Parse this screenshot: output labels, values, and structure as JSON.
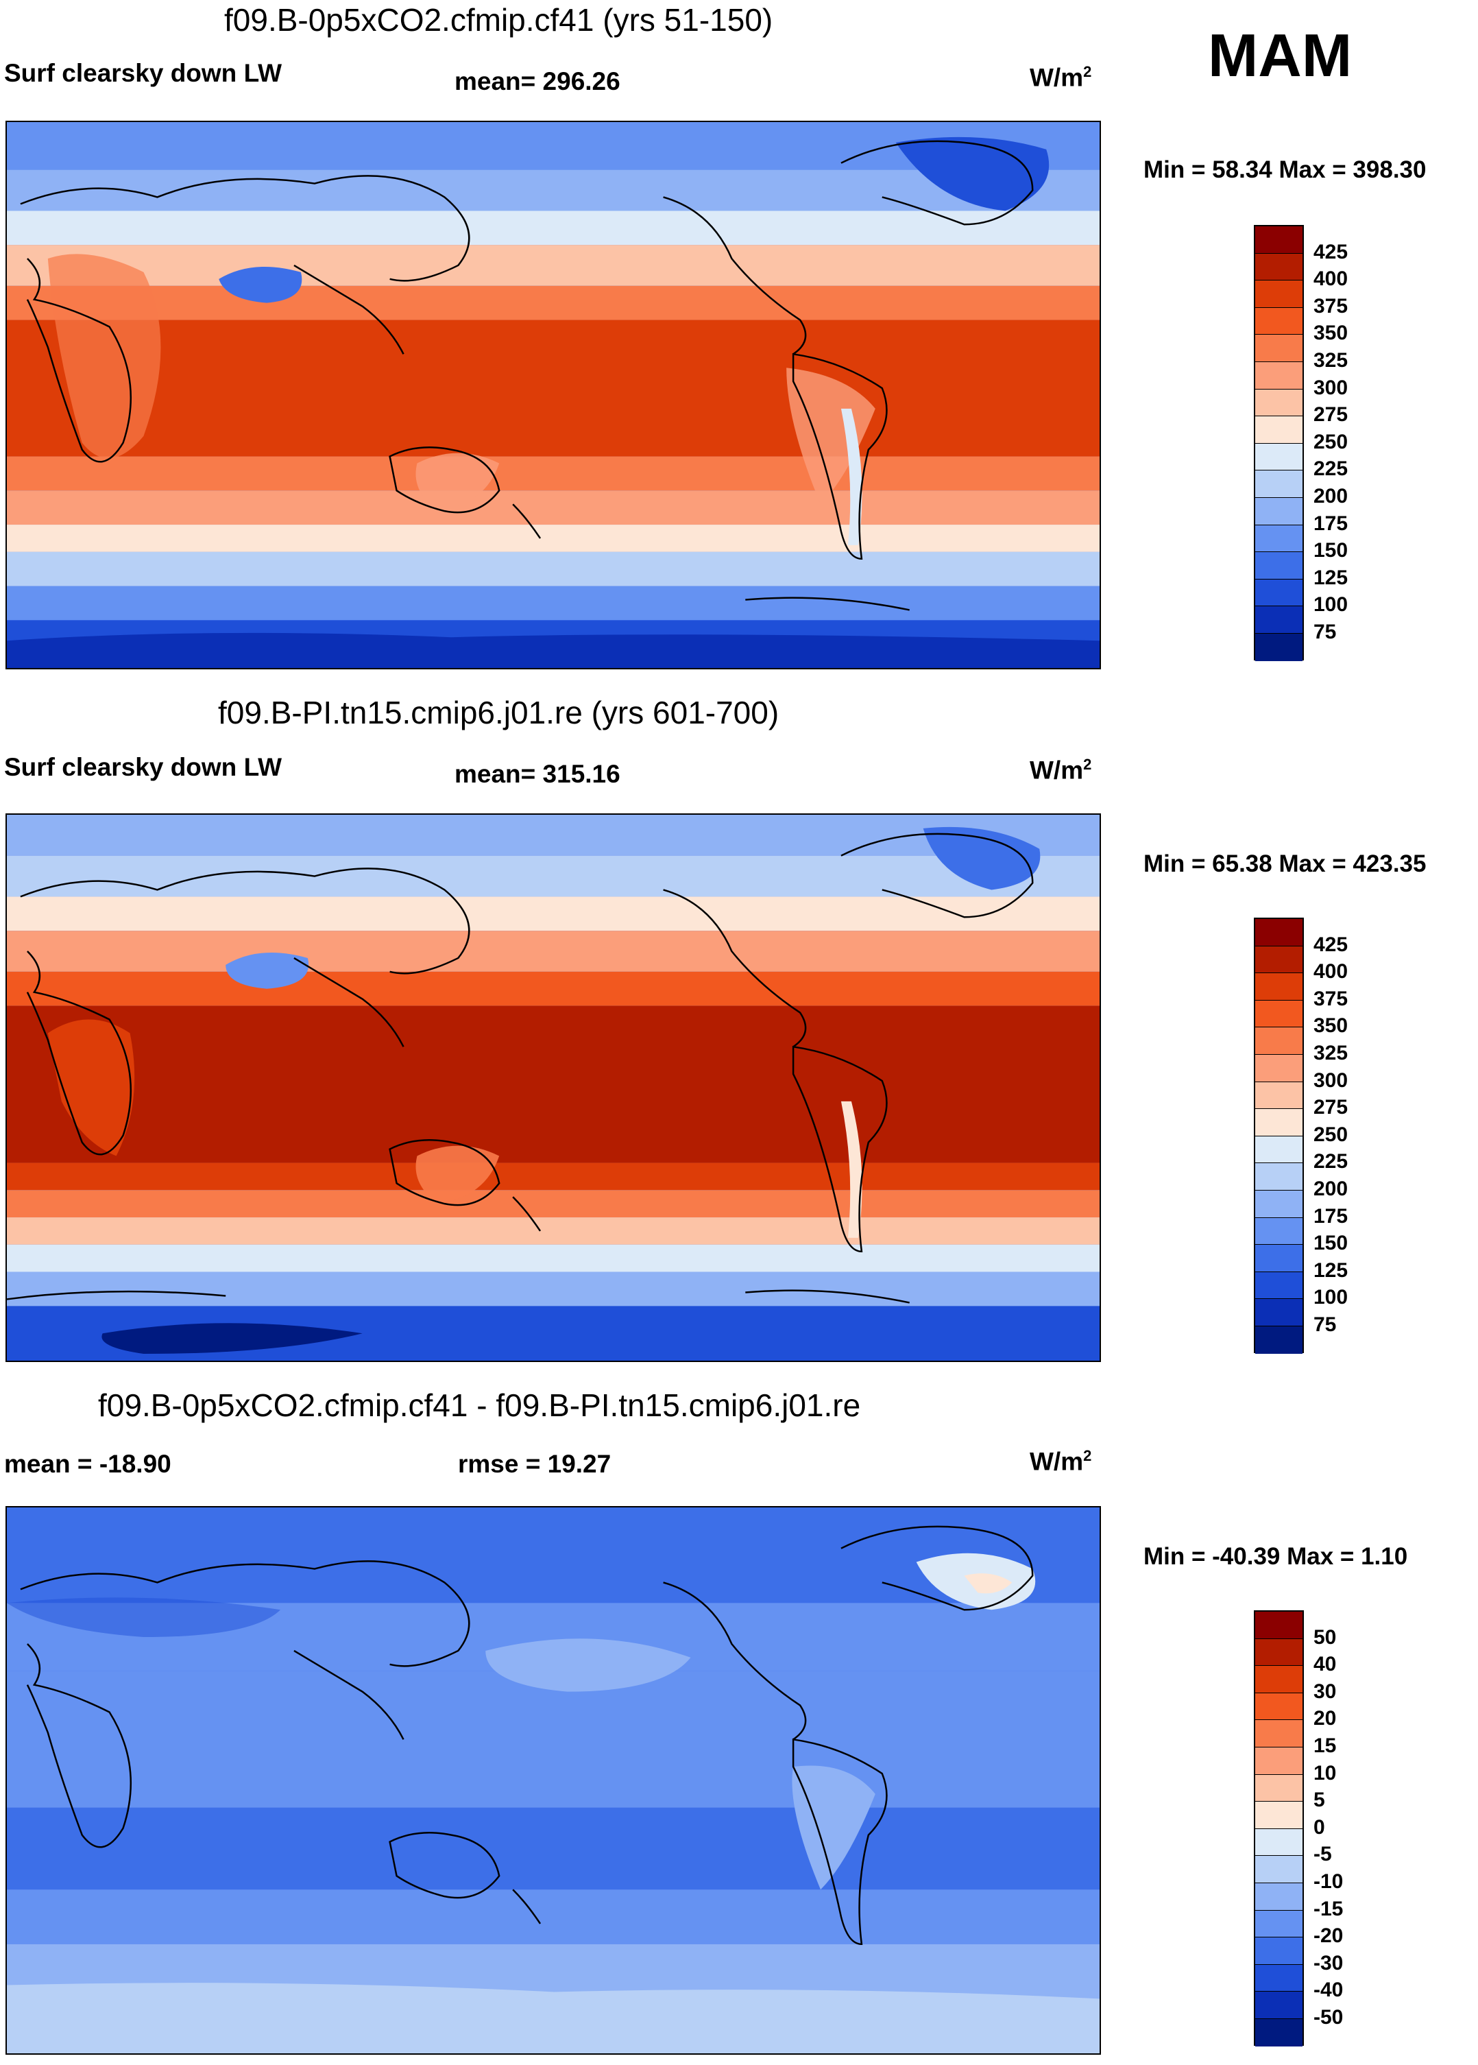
{
  "season": "MAM",
  "panels": [
    {
      "title": "f09.B-0p5xCO2.cfmip.cf41 (yrs 51-150)",
      "left_label": "Surf clearsky down LW",
      "center_label": "mean= 296.26",
      "units": "W/m",
      "units_sup": "2",
      "minmax": "Min =  58.34 Max = 398.30",
      "colorbar": {
        "levels": [
          "425",
          "400",
          "375",
          "350",
          "325",
          "300",
          "275",
          "250",
          "225",
          "200",
          "175",
          "150",
          "125",
          "100",
          "75"
        ],
        "colors": [
          "#8b0000",
          "#b31d00",
          "#dd3d08",
          "#f2581f",
          "#f87b4a",
          "#fb9e7a",
          "#fcc3a6",
          "#fde6d6",
          "#dceaf8",
          "#b7d0f6",
          "#8fb2f5",
          "#6592f2",
          "#3d6fe8",
          "#1f4fd8",
          "#0b2fb6",
          "#001a80"
        ]
      }
    },
    {
      "title": "f09.B-PI.tn15.cmip6.j01.re (yrs 601-700)",
      "left_label": "Surf clearsky down LW",
      "center_label": "mean= 315.16",
      "units": "W/m",
      "units_sup": "2",
      "minmax": "Min =  65.38 Max = 423.35",
      "colorbar": {
        "levels": [
          "425",
          "400",
          "375",
          "350",
          "325",
          "300",
          "275",
          "250",
          "225",
          "200",
          "175",
          "150",
          "125",
          "100",
          "75"
        ],
        "colors": [
          "#8b0000",
          "#b31d00",
          "#dd3d08",
          "#f2581f",
          "#f87b4a",
          "#fb9e7a",
          "#fcc3a6",
          "#fde6d6",
          "#dceaf8",
          "#b7d0f6",
          "#8fb2f5",
          "#6592f2",
          "#3d6fe8",
          "#1f4fd8",
          "#0b2fb6",
          "#001a80"
        ]
      }
    },
    {
      "title": "f09.B-0p5xCO2.cfmip.cf41 - f09.B-PI.tn15.cmip6.j01.re",
      "left_label": "mean = -18.90",
      "center_label": "rmse =  19.27",
      "units": "W/m",
      "units_sup": "2",
      "minmax": "Min = -40.39 Max =   1.10",
      "colorbar": {
        "levels": [
          "50",
          "40",
          "30",
          "20",
          "15",
          "10",
          "5",
          "0",
          "-5",
          "-10",
          "-15",
          "-20",
          "-30",
          "-40",
          "-50"
        ],
        "colors": [
          "#8b0000",
          "#b31d00",
          "#dd3d08",
          "#f2581f",
          "#f87b4a",
          "#fb9e7a",
          "#fcc3a6",
          "#fde6d6",
          "#dceaf8",
          "#b7d0f6",
          "#8fb2f5",
          "#6592f2",
          "#3d6fe8",
          "#1f4fd8",
          "#0b2fb6",
          "#001a80"
        ]
      }
    }
  ]
}
